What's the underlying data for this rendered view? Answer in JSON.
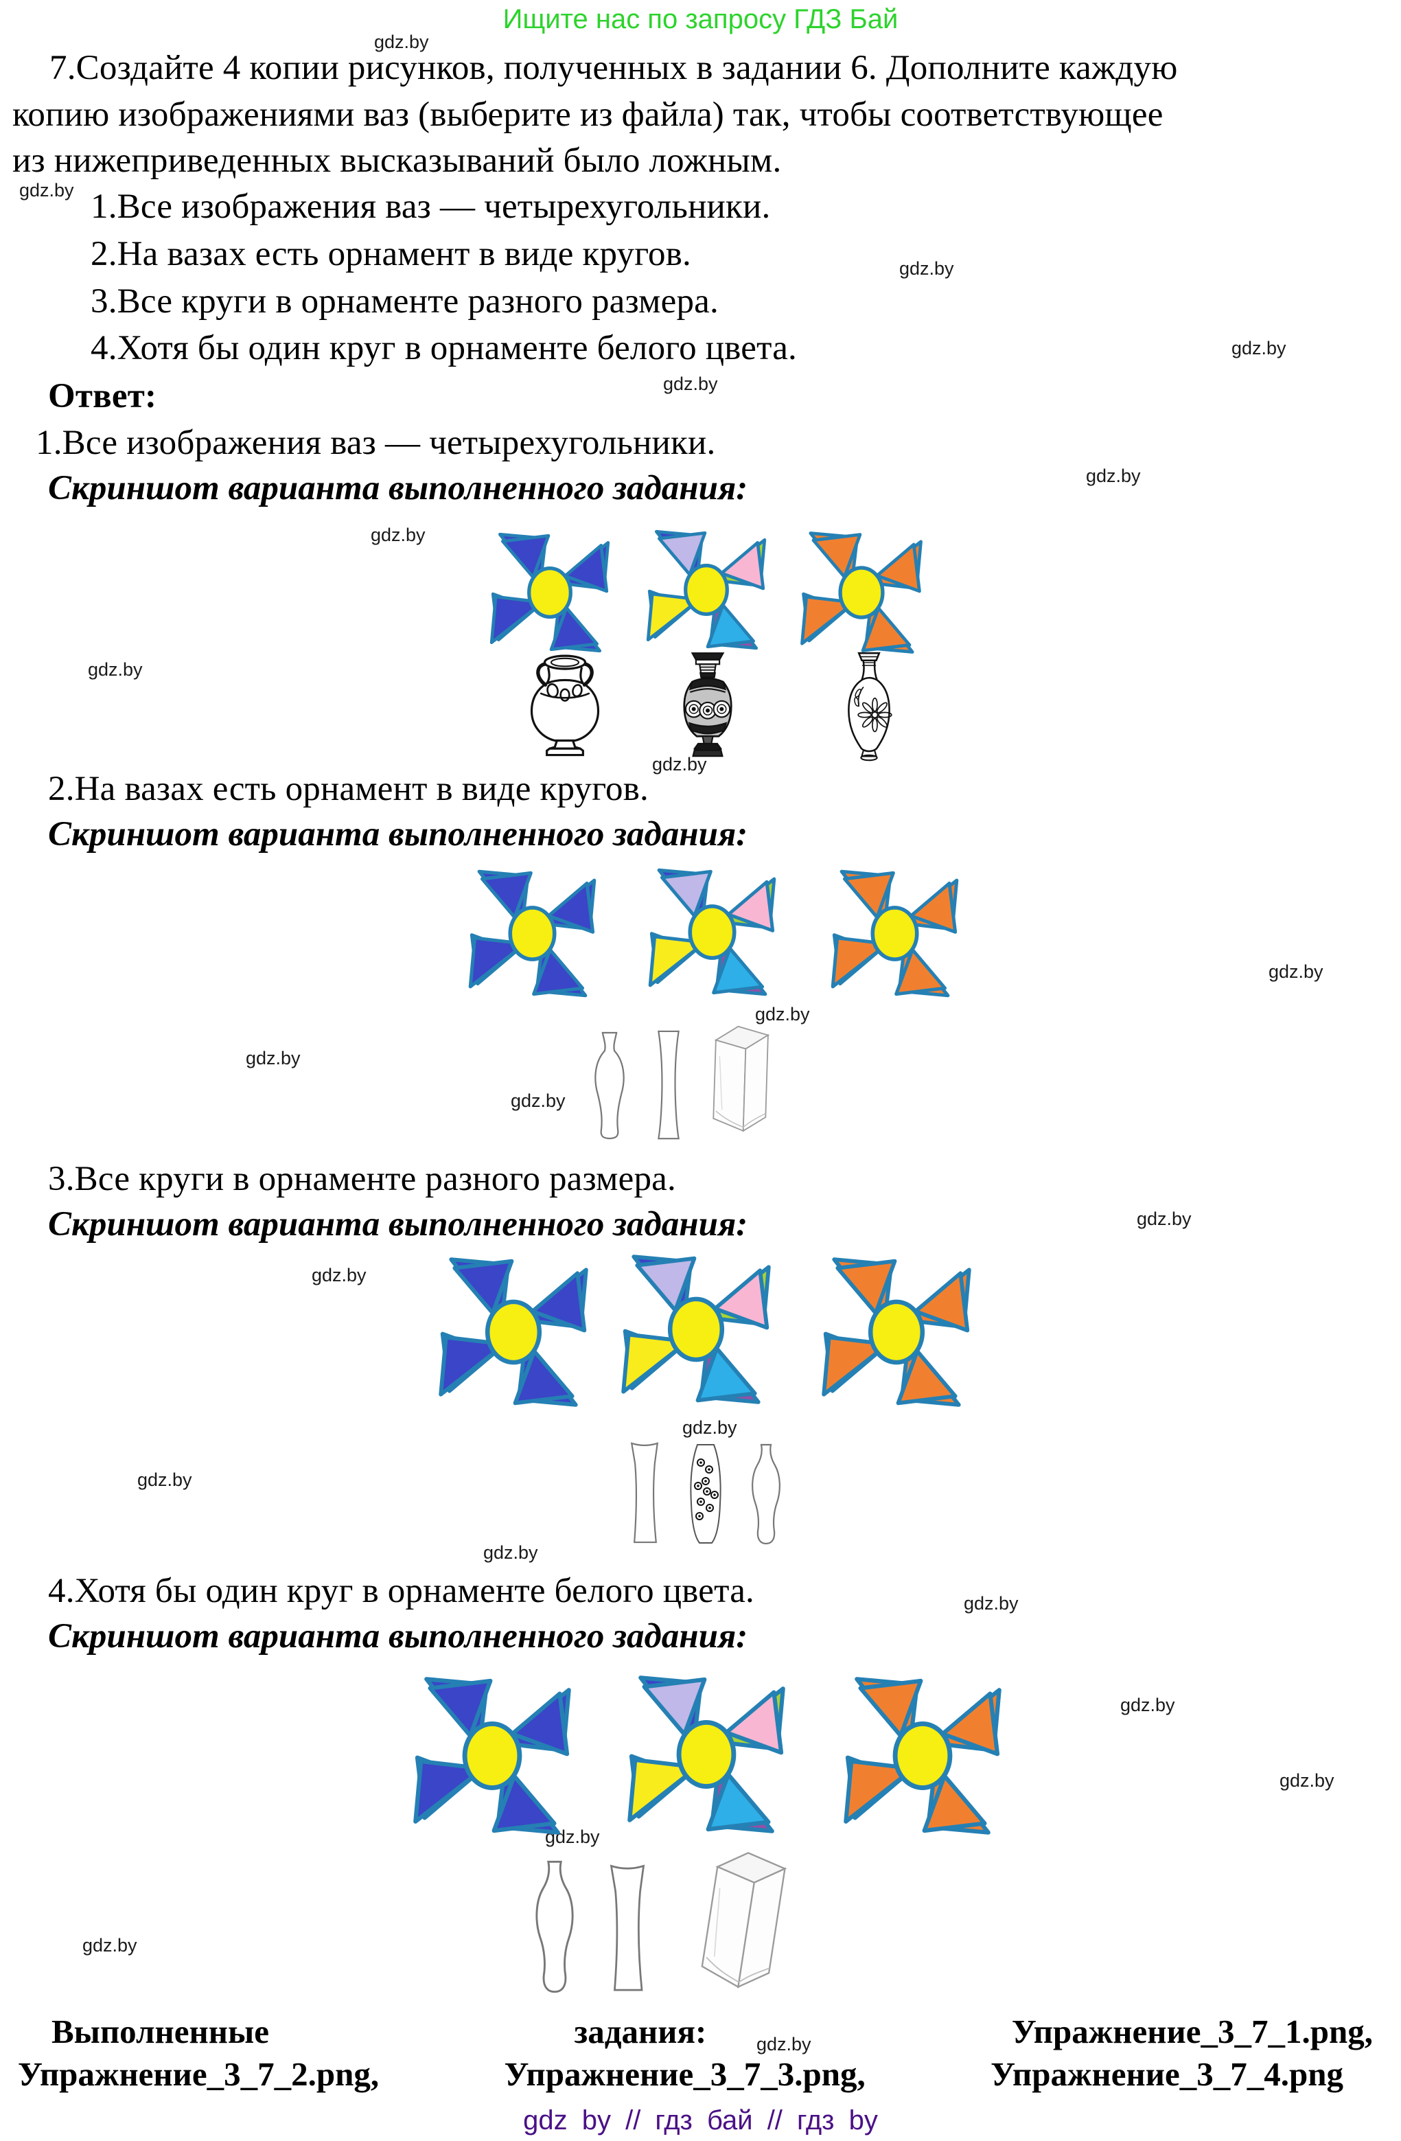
{
  "header": {
    "promo": "Ищите нас по запросу ГДЗ Бай"
  },
  "watermark": "gdz.by",
  "task": {
    "lines": [
      "7.Создайте 4 копии рисунков, полученных в задании 6. Дополните каждую",
      "копию изображениями ваз (выберите из файла) так, чтобы соответствующее",
      "из нижеприведенных высказываний было ложным."
    ],
    "statements": [
      "1.Все изображения ваз — четырехугольники.",
      "2.На вазах есть орнамент в виде кругов.",
      "3.Все круги в орнаменте разного размера.",
      "4.Хотя бы один круг в орнаменте белого цвета."
    ]
  },
  "answer": {
    "label": "Ответ:",
    "screenshot_caption": "Скриншот варианта выполненного задания:",
    "sections": [
      {
        "statement": "1.Все изображения ваз — четырехугольники."
      },
      {
        "statement": "2.На вазах есть орнамент в виде кругов."
      },
      {
        "statement": "3.Все круги в орнаменте разного размера."
      },
      {
        "statement": "4.Хотя бы один круг в орнаменте белого цвета."
      }
    ]
  },
  "footer": {
    "completed_line1": [
      "Выполненные",
      "задания:",
      "Упражнение_3_7_1.png,"
    ],
    "completed_line2": [
      "Упражнение_3_7_2.png,",
      "Упражнение_3_7_3.png,",
      "Упражнение_3_7_4.png"
    ],
    "site_line": "gdz by // гдз бай // гдз by"
  },
  "colors": {
    "promo_green": "#2dd32d",
    "site_purple": "#4a1186",
    "pinwheel_stroke": "#2580b4",
    "pinwheel_center": "#f7ee12"
  },
  "pinwheels": {
    "center": "#f7ee12",
    "stroke": "#2580b4",
    "palettes": {
      "blue": [
        {
          "big": "#3a45c7",
          "small": "#3a45c7"
        },
        {
          "big": "#3a45c7",
          "small": "#3a45c7"
        },
        {
          "big": "#3a45c7",
          "small": "#3a45c7"
        },
        {
          "big": "#3a45c7",
          "small": "#3a45c7"
        }
      ],
      "multi": [
        {
          "big": "#3a45c7",
          "small": "#ea1c2c"
        },
        {
          "big": "#a8d434",
          "small": "#c0b8e8"
        },
        {
          "big": "#9350a6",
          "small": "#f9b6d2"
        },
        {
          "big": "#f9ec1c",
          "small": "#2eafe8"
        }
      ],
      "orange": [
        {
          "big": "#f08030",
          "small": "#f08030"
        },
        {
          "big": "#f08030",
          "small": "#f08030"
        },
        {
          "big": "#f08030",
          "small": "#f08030"
        },
        {
          "big": "#f08030",
          "small": "#f08030"
        }
      ]
    }
  }
}
